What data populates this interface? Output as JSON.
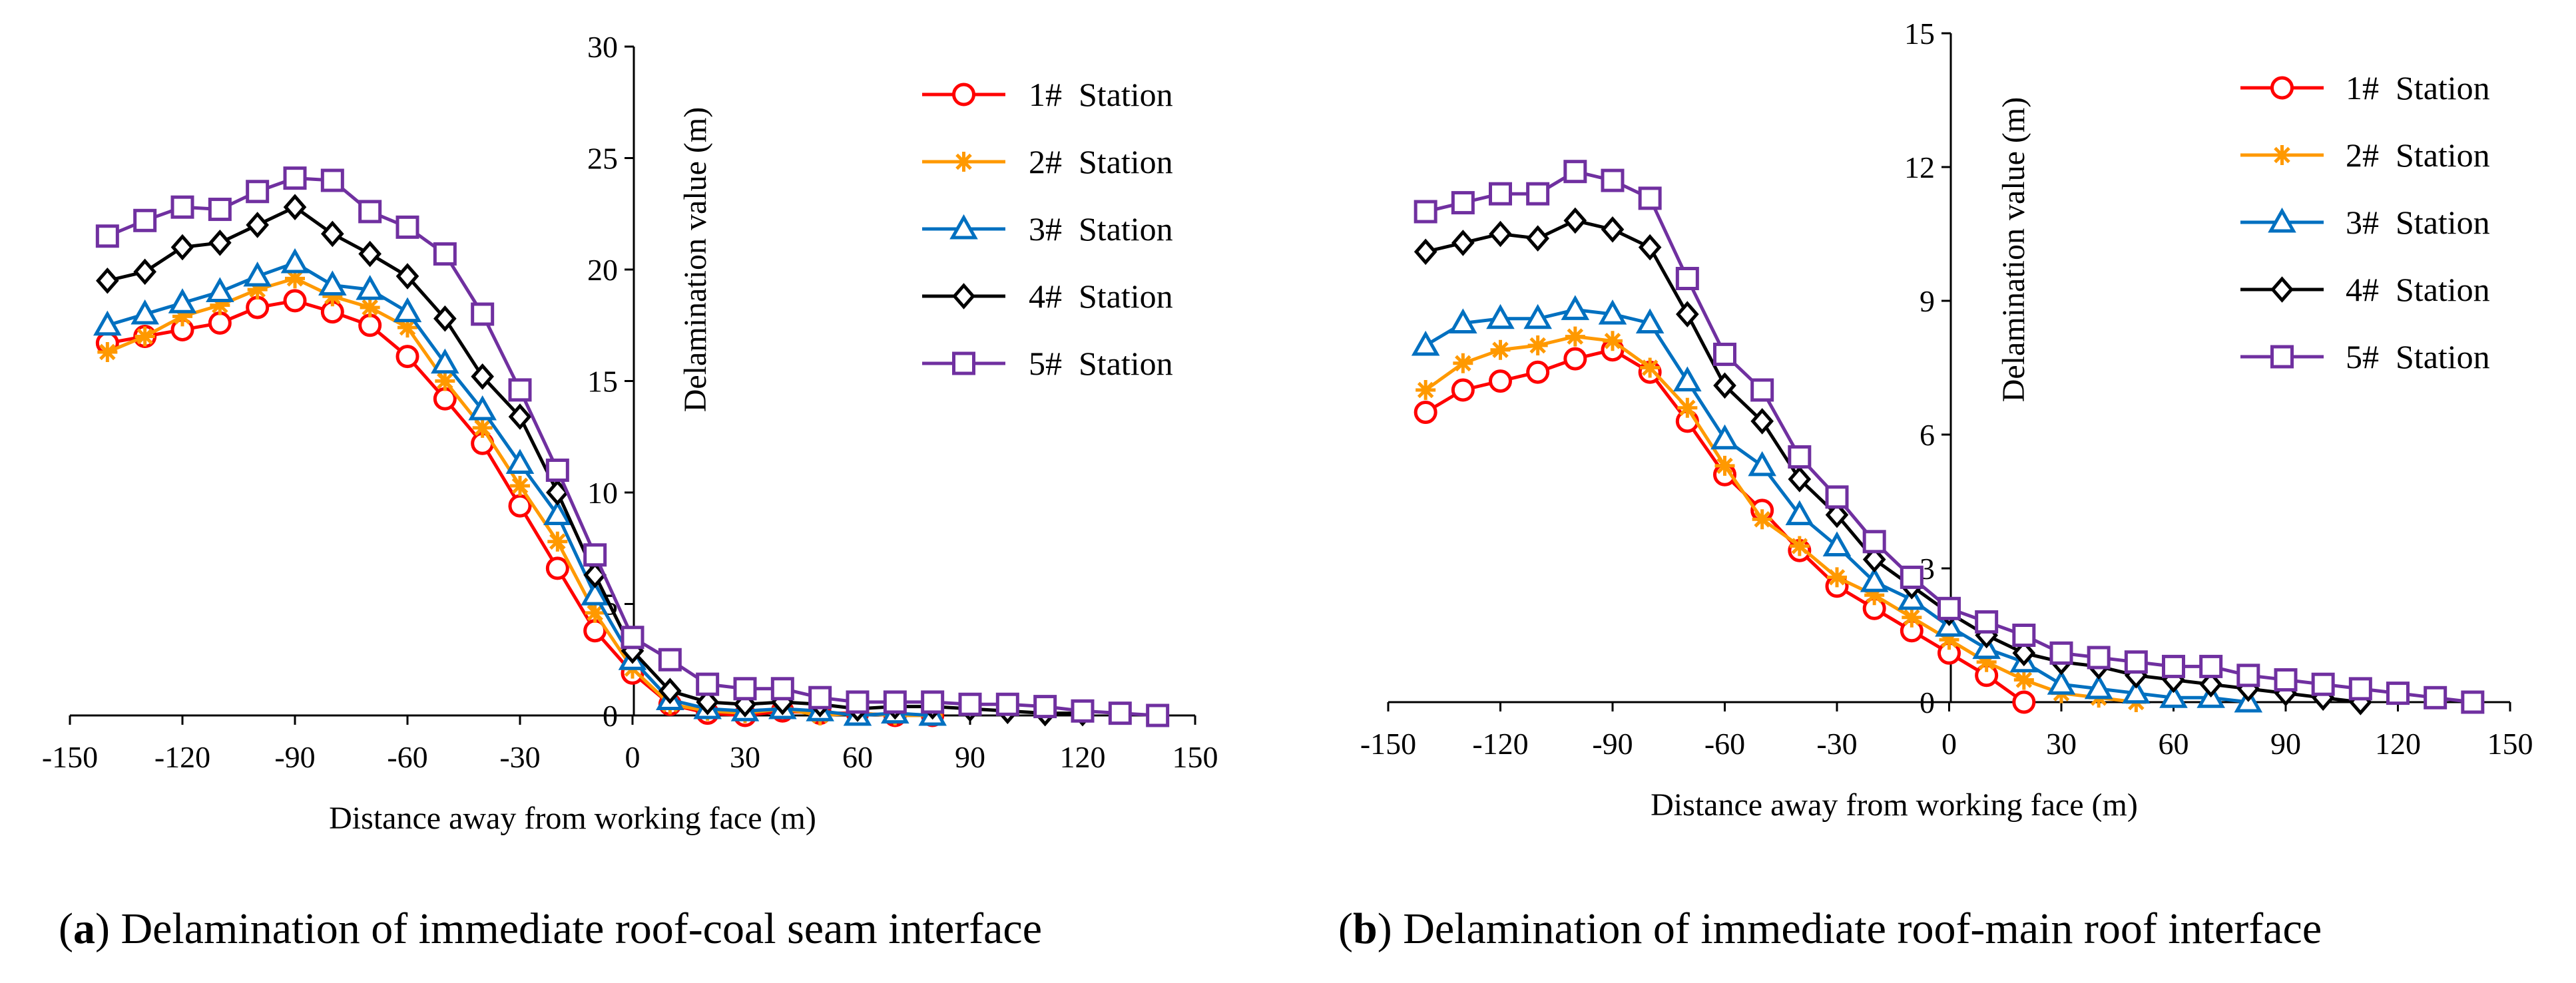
{
  "captions": [
    {
      "letter": "a",
      "text": "Delamination of immediate roof-coal seam interface"
    },
    {
      "letter": "b",
      "text": "Delamination of immediate roof-main roof interface"
    }
  ],
  "chart_data": [
    {
      "type": "line",
      "id": "a",
      "title": "",
      "xlabel": "Distance away from working face (m)",
      "ylabel": "Delamination value (m)",
      "xlim": [
        -150,
        150
      ],
      "ylim": [
        0,
        30
      ],
      "xticks": [
        -150,
        -120,
        -90,
        -60,
        -30,
        0,
        30,
        60,
        90,
        120,
        150
      ],
      "yticks": [
        0,
        5,
        10,
        15,
        20,
        25,
        30
      ],
      "legend_position": "top-right",
      "series": [
        {
          "name": "1#  Station",
          "color": "#ff0000",
          "marker": "circle",
          "x": [
            -140,
            -130,
            -120,
            -110,
            -100,
            -90,
            -80,
            -70,
            -60,
            -50,
            -40,
            -30,
            -20,
            -10,
            0,
            10,
            20,
            30,
            40,
            50,
            60,
            70,
            80
          ],
          "y": [
            16.7,
            17.0,
            17.3,
            17.6,
            18.3,
            18.6,
            18.1,
            17.5,
            16.1,
            14.2,
            12.2,
            9.4,
            6.6,
            3.8,
            1.9,
            0.5,
            0.1,
            0.0,
            0.2,
            0.1,
            0.1,
            0.0,
            0.0
          ]
        },
        {
          "name": "2#  Station",
          "color": "#ff9900",
          "marker": "asterisk",
          "x": [
            -140,
            -130,
            -120,
            -110,
            -100,
            -90,
            -80,
            -70,
            -60,
            -50,
            -40,
            -30,
            -20,
            -10,
            0,
            10,
            20,
            30,
            40,
            50,
            60,
            70,
            80
          ],
          "y": [
            16.3,
            17.0,
            17.9,
            18.4,
            19.1,
            19.6,
            18.8,
            18.3,
            17.4,
            15.0,
            12.9,
            10.3,
            7.8,
            4.6,
            2.1,
            0.5,
            0.2,
            0.1,
            0.3,
            0.0,
            0.1,
            0.0,
            0.0
          ]
        },
        {
          "name": "3#  Station",
          "color": "#0070c0",
          "marker": "triangle",
          "x": [
            -140,
            -130,
            -120,
            -110,
            -100,
            -90,
            -80,
            -70,
            -60,
            -50,
            -40,
            -30,
            -20,
            -10,
            0,
            10,
            20,
            30,
            40,
            50,
            60,
            70,
            80
          ],
          "y": [
            17.5,
            18.0,
            18.5,
            19.0,
            19.7,
            20.3,
            19.3,
            19.1,
            18.1,
            15.8,
            13.7,
            11.3,
            9.0,
            5.4,
            2.5,
            0.7,
            0.3,
            0.2,
            0.3,
            0.2,
            0.0,
            0.1,
            0.0
          ]
        },
        {
          "name": "4#  Station",
          "color": "#000000",
          "marker": "diamond",
          "x": [
            -140,
            -130,
            -120,
            -110,
            -100,
            -90,
            -80,
            -70,
            -60,
            -50,
            -40,
            -30,
            -20,
            -10,
            0,
            10,
            20,
            30,
            40,
            50,
            60,
            70,
            80,
            90,
            100,
            110,
            120
          ],
          "y": [
            19.5,
            19.9,
            21.0,
            21.2,
            22.0,
            22.8,
            21.6,
            20.7,
            19.7,
            17.8,
            15.2,
            13.4,
            10.0,
            6.3,
            2.9,
            1.1,
            0.6,
            0.5,
            0.6,
            0.5,
            0.3,
            0.4,
            0.4,
            0.3,
            0.2,
            0.1,
            0.1
          ]
        },
        {
          "name": "5#  Station",
          "color": "#7030a0",
          "marker": "square",
          "x": [
            -140,
            -130,
            -120,
            -110,
            -100,
            -90,
            -80,
            -70,
            -60,
            -50,
            -40,
            -30,
            -20,
            -10,
            0,
            10,
            20,
            30,
            40,
            50,
            60,
            70,
            80,
            90,
            100,
            110,
            120,
            130,
            140
          ],
          "y": [
            21.5,
            22.2,
            22.8,
            22.7,
            23.5,
            24.1,
            24.0,
            22.6,
            21.9,
            20.7,
            18.0,
            14.6,
            11.0,
            7.2,
            3.5,
            2.5,
            1.4,
            1.2,
            1.2,
            0.8,
            0.6,
            0.6,
            0.6,
            0.5,
            0.5,
            0.4,
            0.2,
            0.1,
            0.0
          ]
        }
      ]
    },
    {
      "type": "line",
      "id": "b",
      "title": "",
      "xlabel": "Distance away from working face (m)",
      "ylabel": "Delamination value (m)",
      "xlim": [
        -150,
        150
      ],
      "ylim": [
        0,
        15
      ],
      "xticks": [
        -150,
        -120,
        -90,
        -60,
        -30,
        0,
        30,
        60,
        90,
        120,
        150
      ],
      "yticks": [
        0,
        3,
        6,
        9,
        12,
        15
      ],
      "legend_position": "top-right",
      "series": [
        {
          "name": "1#  Station",
          "color": "#ff0000",
          "marker": "circle",
          "x": [
            -140,
            -130,
            -120,
            -110,
            -100,
            -90,
            -80,
            -70,
            -60,
            -50,
            -40,
            -30,
            -20,
            -10,
            0,
            10,
            20
          ],
          "y": [
            6.5,
            7.0,
            7.2,
            7.4,
            7.7,
            7.9,
            7.4,
            6.3,
            5.1,
            4.3,
            3.4,
            2.6,
            2.1,
            1.6,
            1.1,
            0.6,
            0.0
          ]
        },
        {
          "name": "2#  Station",
          "color": "#ff9900",
          "marker": "asterisk",
          "x": [
            -140,
            -130,
            -120,
            -110,
            -100,
            -90,
            -80,
            -70,
            -60,
            -50,
            -40,
            -30,
            -20,
            -10,
            0,
            10,
            20,
            30,
            40,
            50
          ],
          "y": [
            7.0,
            7.6,
            7.9,
            8.0,
            8.2,
            8.1,
            7.5,
            6.6,
            5.3,
            4.1,
            3.5,
            2.8,
            2.4,
            1.9,
            1.4,
            0.9,
            0.5,
            0.2,
            0.1,
            0.0
          ]
        },
        {
          "name": "3#  Station",
          "color": "#0070c0",
          "marker": "triangle",
          "x": [
            -140,
            -130,
            -120,
            -110,
            -100,
            -90,
            -80,
            -70,
            -60,
            -50,
            -40,
            -30,
            -20,
            -10,
            0,
            10,
            20,
            30,
            40,
            50,
            60,
            70,
            80
          ],
          "y": [
            8.0,
            8.5,
            8.6,
            8.6,
            8.8,
            8.7,
            8.5,
            7.2,
            5.9,
            5.3,
            4.2,
            3.5,
            2.7,
            2.3,
            1.7,
            1.2,
            0.9,
            0.4,
            0.3,
            0.2,
            0.1,
            0.1,
            0.0
          ]
        },
        {
          "name": "4#  Station",
          "color": "#000000",
          "marker": "diamond",
          "x": [
            -140,
            -130,
            -120,
            -110,
            -100,
            -90,
            -80,
            -70,
            -60,
            -50,
            -40,
            -30,
            -20,
            -10,
            0,
            10,
            20,
            30,
            40,
            50,
            60,
            70,
            80,
            90,
            100,
            110
          ],
          "y": [
            10.1,
            10.3,
            10.5,
            10.4,
            10.8,
            10.6,
            10.2,
            8.7,
            7.1,
            6.3,
            5.0,
            4.2,
            3.2,
            2.6,
            2.0,
            1.5,
            1.1,
            0.9,
            0.8,
            0.6,
            0.5,
            0.4,
            0.3,
            0.2,
            0.1,
            0.0
          ]
        },
        {
          "name": "5#  Station",
          "color": "#7030a0",
          "marker": "square",
          "x": [
            -140,
            -130,
            -120,
            -110,
            -100,
            -90,
            -80,
            -70,
            -60,
            -50,
            -40,
            -30,
            -20,
            -10,
            0,
            10,
            20,
            30,
            40,
            50,
            60,
            70,
            80,
            90,
            100,
            110,
            120,
            130,
            140
          ],
          "y": [
            11.0,
            11.2,
            11.4,
            11.4,
            11.9,
            11.7,
            11.3,
            9.5,
            7.8,
            7.0,
            5.5,
            4.6,
            3.6,
            2.8,
            2.1,
            1.8,
            1.5,
            1.1,
            1.0,
            0.9,
            0.8,
            0.8,
            0.6,
            0.5,
            0.4,
            0.3,
            0.2,
            0.1,
            0.0
          ]
        }
      ]
    }
  ]
}
